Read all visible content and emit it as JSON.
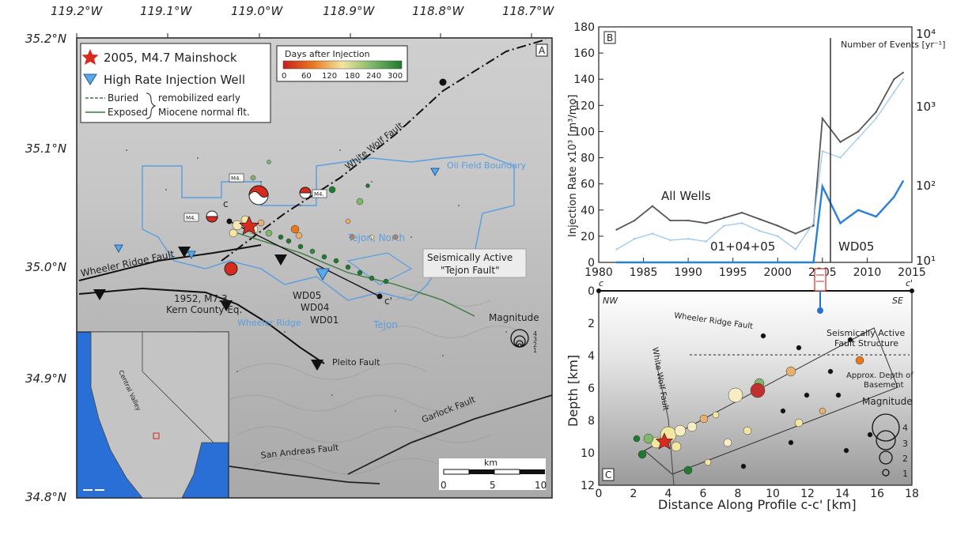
{
  "panelA": {
    "panel_letter": "A",
    "lon_ticks": [
      "119.2°W",
      "119.1°W",
      "119.0°W",
      "118.9°W",
      "118.8°W",
      "118.7°W"
    ],
    "lat_ticks": [
      "35.2°N",
      "35.1°N",
      "35.0°N",
      "34.9°N",
      "34.8°N"
    ],
    "legend": {
      "mainshock": "2005, M4.7 Mainshock",
      "well": "High Rate Injection Well",
      "buried": "Buried",
      "exposed": "Exposed",
      "remob1": "remobilized early",
      "remob2": "Miocene normal flt."
    },
    "colorbar": {
      "title": "Days after Injection",
      "ticks": [
        "0",
        "60",
        "120",
        "180",
        "240",
        "300"
      ],
      "colors": [
        "#c81e1e",
        "#e8781e",
        "#f2e6a0",
        "#7fb86a",
        "#1e7a2e"
      ]
    },
    "labels": {
      "white_wolf": "White Wolf Fault",
      "oil_field": "Oil Field Boundary",
      "tejon_north": "Tejon, North",
      "tejon": "Tejon",
      "wheeler_ridge_fault": "Wheeler Ridge Fault",
      "kern_line1": "1952, M7.3",
      "kern_line2": "Kern County Eq.",
      "wheeler_ridge": "Wheeler Ridge",
      "wd05": "WD05",
      "wd04": "WD04",
      "wd01": "WD01",
      "c_label": "c",
      "c_prime": "c'",
      "seis1": "Seismically Active",
      "seis2": "\"Tejon Fault\"",
      "pleito": "Pleito Fault",
      "garlock": "Garlock Fault",
      "san_andreas": "San Andreas Fault",
      "magnitude": "Magnitude",
      "mag_vals": [
        "4",
        "3",
        "2",
        "1"
      ],
      "km": "km",
      "km_ticks": [
        "0",
        "5",
        "10"
      ],
      "m4": "M4.",
      "central_valley": "Central Valley"
    }
  },
  "panelB": {
    "panel_letter": "B",
    "ylabel_left": "Injection Rate x10³ [m³/mo]",
    "yticks_left": [
      "180",
      "160",
      "140",
      "120",
      "100",
      "80",
      "60",
      "40",
      "20",
      "0"
    ],
    "yticks_right": [
      "10⁴",
      "10³",
      "10²",
      "10¹"
    ],
    "xticks": [
      "1980",
      "1985",
      "1990",
      "1995",
      "2000",
      "2005",
      "2010",
      "2015"
    ],
    "events_label": "Number of Events [yr⁻¹]",
    "all_wells": "All Wells",
    "wells_010405": "01+04+05",
    "wd05": "WD05"
  },
  "panelC": {
    "panel_letter": "C",
    "nw": "NW",
    "se": "SE",
    "c_left": "c",
    "c_right": "c'",
    "ylabel": "Depth [km]",
    "xlabel": "Distance Along Profile c-c' [km]",
    "yticks": [
      "0",
      "2",
      "4",
      "6",
      "8",
      "10",
      "12"
    ],
    "xticks": [
      "0",
      "2",
      "4",
      "6",
      "8",
      "10",
      "12",
      "14",
      "16",
      "18"
    ],
    "wheeler_ridge_fault": "Wheeler Ridge Fault",
    "white_wolf_fault": "White Wolf Fault",
    "seis1": "Seismically Active",
    "seis2": "Fault Structure",
    "basement1": "Approx. Depth of",
    "basement2": "Basement",
    "magnitude": "Magnitude",
    "mag_vals": [
      "4",
      "3",
      "2",
      "1"
    ]
  },
  "chart_data": {
    "type": "line",
    "x": [
      1982,
      1984,
      1986,
      1988,
      1990,
      1992,
      1994,
      1996,
      1998,
      2000,
      2002,
      2004,
      2005,
      2007,
      2009,
      2011,
      2013,
      2014
    ],
    "series": [
      {
        "name": "All Wells",
        "values": [
          25,
          32,
          43,
          32,
          32,
          30,
          34,
          38,
          33,
          28,
          22,
          28,
          110,
          92,
          100,
          115,
          140,
          145
        ]
      },
      {
        "name": "01+04+05",
        "values": [
          10,
          18,
          22,
          17,
          18,
          16,
          28,
          30,
          24,
          20,
          10,
          30,
          85,
          80,
          95,
          110,
          130,
          140
        ]
      },
      {
        "name": "WD05",
        "values": [
          0,
          0,
          0,
          0,
          0,
          0,
          0,
          0,
          0,
          0,
          0,
          0,
          58,
          30,
          40,
          35,
          50,
          62
        ]
      }
    ],
    "xlim": [
      1980,
      2015
    ],
    "ylim": [
      0,
      180
    ]
  }
}
